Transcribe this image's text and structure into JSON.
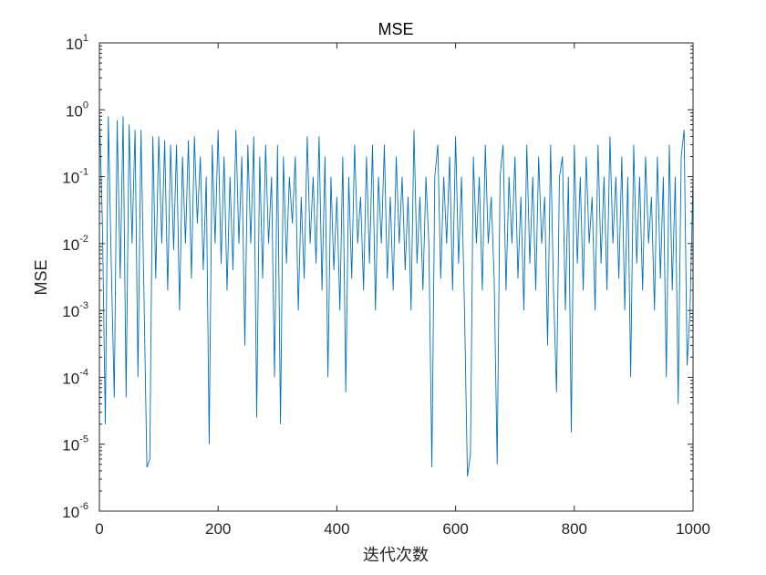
{
  "chart_data": {
    "type": "line",
    "title": "MSE",
    "xlabel": "迭代次数",
    "ylabel": "MSE",
    "xlim": [
      0,
      1000
    ],
    "ylim": [
      1e-06,
      10
    ],
    "yscale": "log",
    "grid": false,
    "line_color": "#0072BD",
    "xticks": [
      0,
      200,
      400,
      600,
      800,
      1000
    ],
    "xtick_labels": [
      "0",
      "200",
      "400",
      "600",
      "800",
      "1000"
    ],
    "yticks": [
      {
        "base": "10",
        "exp": "-6"
      },
      {
        "base": "10",
        "exp": "-5"
      },
      {
        "base": "10",
        "exp": "-4"
      },
      {
        "base": "10",
        "exp": "-3"
      },
      {
        "base": "10",
        "exp": "-2"
      },
      {
        "base": "10",
        "exp": "-1"
      },
      {
        "base": "10",
        "exp": "0"
      },
      {
        "base": "10",
        "exp": "1"
      }
    ],
    "series": [
      {
        "x": [
          0,
          5,
          10,
          15,
          20,
          25,
          30,
          35,
          40,
          45,
          50,
          55,
          60,
          65,
          70,
          75,
          80,
          85,
          90,
          95,
          100,
          105,
          110,
          115,
          120,
          125,
          130,
          135,
          140,
          145,
          150,
          155,
          160,
          165,
          170,
          175,
          180,
          185,
          190,
          195,
          200,
          205,
          210,
          215,
          220,
          225,
          230,
          235,
          240,
          245,
          250,
          255,
          260,
          265,
          270,
          275,
          280,
          285,
          290,
          295,
          300,
          305,
          310,
          315,
          320,
          325,
          330,
          335,
          340,
          345,
          350,
          355,
          360,
          365,
          370,
          375,
          380,
          385,
          390,
          395,
          400,
          405,
          410,
          415,
          420,
          425,
          430,
          435,
          440,
          445,
          450,
          455,
          460,
          465,
          470,
          475,
          480,
          485,
          490,
          495,
          500,
          505,
          510,
          515,
          520,
          525,
          530,
          535,
          540,
          545,
          550,
          555,
          560,
          565,
          570,
          575,
          580,
          585,
          590,
          595,
          600,
          605,
          610,
          615,
          620,
          625,
          630,
          635,
          640,
          645,
          650,
          655,
          660,
          665,
          670,
          675,
          680,
          685,
          690,
          695,
          700,
          705,
          710,
          715,
          720,
          725,
          730,
          735,
          740,
          745,
          750,
          755,
          760,
          765,
          770,
          775,
          780,
          785,
          790,
          795,
          800,
          805,
          810,
          815,
          820,
          825,
          830,
          835,
          840,
          845,
          850,
          855,
          860,
          865,
          870,
          875,
          880,
          885,
          890,
          895,
          900,
          905,
          910,
          915,
          920,
          925,
          930,
          935,
          940,
          945,
          950,
          955,
          960,
          965,
          970,
          975,
          980,
          985,
          990,
          995,
          1000
        ],
        "y": [
          1.0,
          0.02,
          2e-05,
          0.8,
          0.005,
          5e-05,
          0.7,
          0.003,
          0.8,
          5e-05,
          0.6,
          0.01,
          0.5,
          0.0001,
          0.5,
          0.002,
          4.5e-06,
          6e-06,
          0.4,
          0.003,
          0.4,
          0.01,
          0.35,
          0.002,
          0.3,
          0.008,
          0.3,
          0.001,
          0.2,
          0.01,
          0.35,
          0.003,
          0.4,
          0.02,
          0.2,
          0.004,
          0.1,
          1e-05,
          0.3,
          0.01,
          0.5,
          0.005,
          0.2,
          0.002,
          0.1,
          0.004,
          0.5,
          0.01,
          0.2,
          0.0003,
          0.3,
          0.01,
          0.4,
          2.5e-05,
          0.2,
          0.003,
          0.3,
          0.01,
          0.1,
          0.0001,
          0.3,
          2e-05,
          0.2,
          0.005,
          0.1,
          0.02,
          0.2,
          0.001,
          0.05,
          0.003,
          0.4,
          0.01,
          0.1,
          0.005,
          0.4,
          0.002,
          0.2,
          0.0001,
          0.1,
          0.004,
          0.05,
          0.001,
          0.2,
          6e-05,
          0.1,
          0.003,
          0.3,
          0.01,
          0.05,
          0.002,
          0.2,
          0.005,
          0.3,
          0.001,
          0.1,
          0.01,
          0.3,
          0.003,
          0.05,
          0.002,
          0.2,
          0.01,
          0.1,
          0.004,
          0.05,
          0.001,
          0.5,
          0.005,
          0.05,
          0.002,
          0.1,
          0.01,
          4.5e-06,
          0.1,
          0.3,
          0.003,
          0.1,
          0.01,
          0.2,
          0.002,
          0.4,
          0.005,
          0.1,
          0.001,
          3.3e-06,
          7e-06,
          0.2,
          0.01,
          0.1,
          0.002,
          0.3,
          0.01,
          0.05,
          0.003,
          5e-06,
          0.1,
          0.3,
          0.002,
          0.1,
          0.01,
          0.2,
          0.003,
          0.05,
          0.001,
          0.3,
          0.005,
          0.1,
          0.002,
          0.2,
          0.01,
          0.05,
          0.0003,
          0.3,
          0.002,
          6e-05,
          0.1,
          0.2,
          0.001,
          0.1,
          1.5e-05,
          0.3,
          0.005,
          0.1,
          0.002,
          0.2,
          0.01,
          0.05,
          0.001,
          0.3,
          0.005,
          0.1,
          0.002,
          0.4,
          0.01,
          0.1,
          0.003,
          0.2,
          0.001,
          0.1,
          0.0001,
          0.3,
          0.005,
          0.1,
          0.002,
          0.2,
          0.01,
          0.05,
          0.001,
          0.2,
          0.003,
          0.1,
          0.0001,
          0.3,
          0.002,
          0.1,
          4e-05,
          0.2,
          0.5,
          0.00015,
          0.001,
          0.1
        ]
      }
    ]
  }
}
